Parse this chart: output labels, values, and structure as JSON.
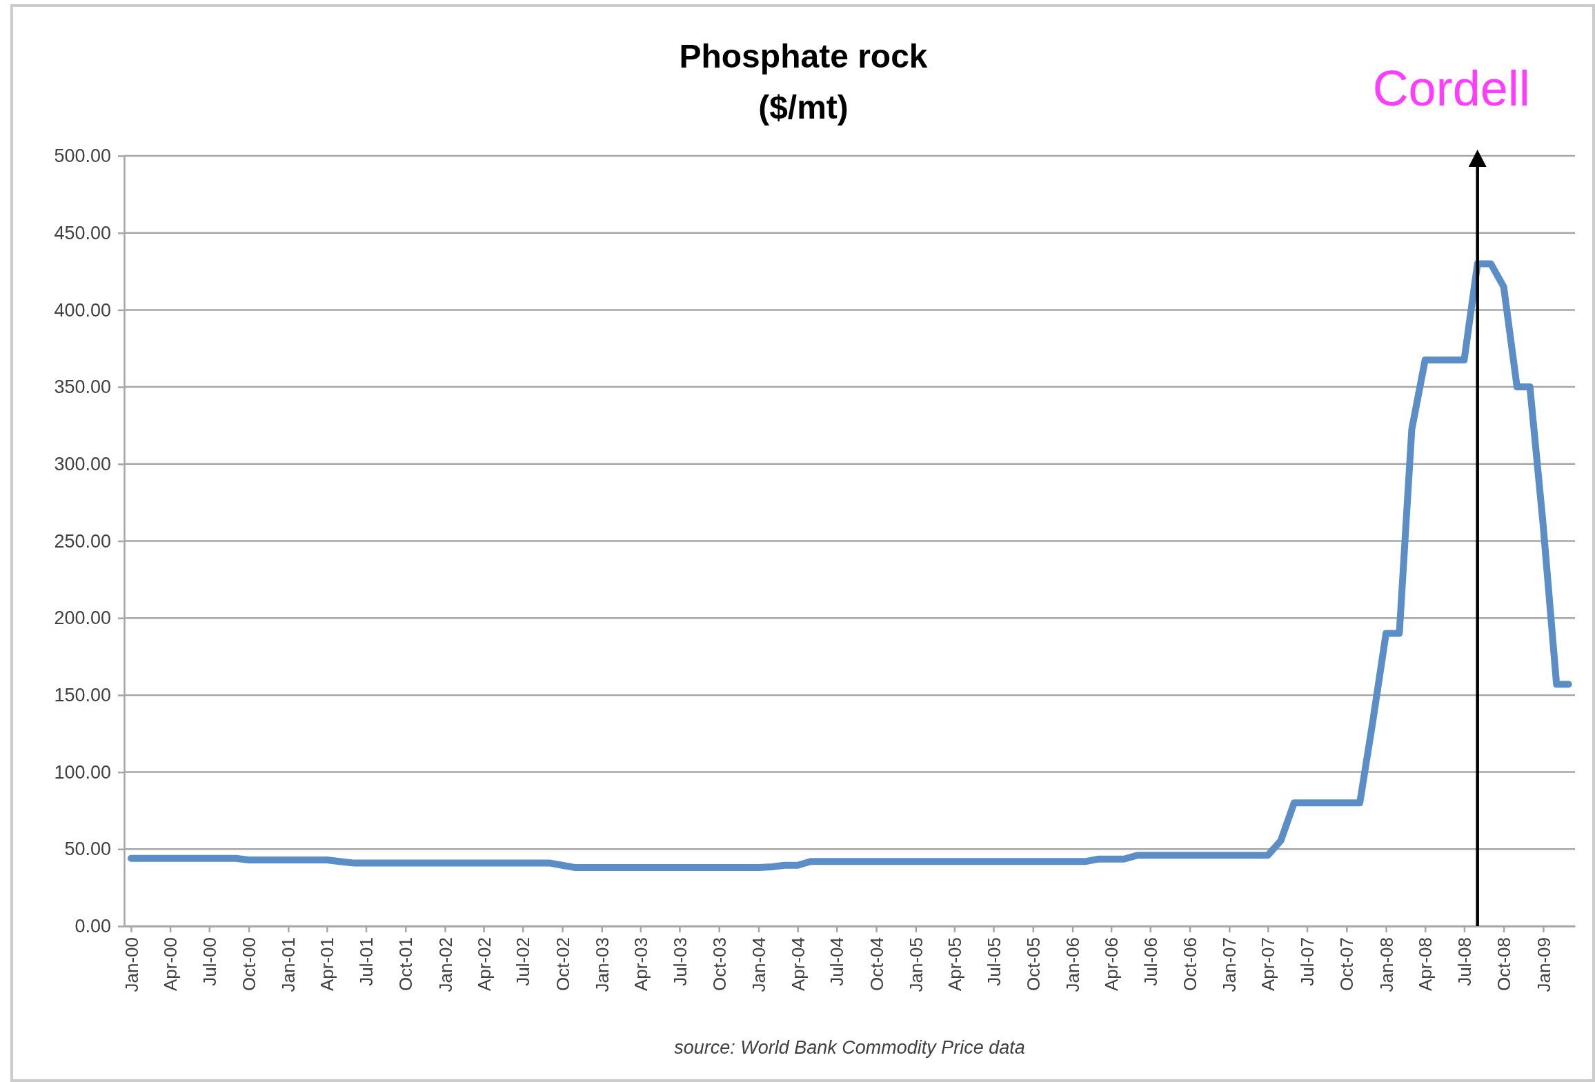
{
  "chart_data": {
    "type": "line",
    "title": "Phosphate rock ($/mt)",
    "x": [
      "2000-01",
      "2000-02",
      "2000-03",
      "2000-04",
      "2000-05",
      "2000-06",
      "2000-07",
      "2000-08",
      "2000-09",
      "2000-10",
      "2000-11",
      "2000-12",
      "2001-01",
      "2001-02",
      "2001-03",
      "2001-04",
      "2001-05",
      "2001-06",
      "2001-07",
      "2001-08",
      "2001-09",
      "2001-10",
      "2001-11",
      "2001-12",
      "2002-01",
      "2002-02",
      "2002-03",
      "2002-04",
      "2002-05",
      "2002-06",
      "2002-07",
      "2002-08",
      "2002-09",
      "2002-10",
      "2002-11",
      "2002-12",
      "2003-01",
      "2003-02",
      "2003-03",
      "2003-04",
      "2003-05",
      "2003-06",
      "2003-07",
      "2003-08",
      "2003-09",
      "2003-10",
      "2003-11",
      "2003-12",
      "2004-01",
      "2004-02",
      "2004-03",
      "2004-04",
      "2004-05",
      "2004-06",
      "2004-07",
      "2004-08",
      "2004-09",
      "2004-10",
      "2004-11",
      "2004-12",
      "2005-01",
      "2005-02",
      "2005-03",
      "2005-04",
      "2005-05",
      "2005-06",
      "2005-07",
      "2005-08",
      "2005-09",
      "2005-10",
      "2005-11",
      "2005-12",
      "2006-01",
      "2006-02",
      "2006-03",
      "2006-04",
      "2006-05",
      "2006-06",
      "2006-07",
      "2006-08",
      "2006-09",
      "2006-10",
      "2006-11",
      "2006-12",
      "2007-01",
      "2007-02",
      "2007-03",
      "2007-04",
      "2007-05",
      "2007-06",
      "2007-07",
      "2007-08",
      "2007-09",
      "2007-10",
      "2007-11",
      "2007-12",
      "2008-01",
      "2008-02",
      "2008-03",
      "2008-04",
      "2008-05",
      "2008-06",
      "2008-07",
      "2008-08",
      "2008-09",
      "2008-10",
      "2008-11",
      "2008-12",
      "2009-01",
      "2009-02",
      "2009-03"
    ],
    "values": [
      44,
      44,
      44,
      44,
      44,
      44,
      44,
      44,
      44,
      43,
      43,
      43,
      43,
      43,
      43,
      43,
      42,
      41,
      41,
      41,
      41,
      41,
      41,
      41,
      41,
      41,
      41,
      41,
      41,
      41,
      41,
      41,
      41,
      39.5,
      38,
      38,
      38,
      38,
      38,
      38,
      38,
      38,
      38,
      38,
      38,
      38,
      38,
      38,
      38,
      38.5,
      39.5,
      39.5,
      42,
      42,
      42,
      42,
      42,
      42,
      42,
      42,
      42,
      42,
      42,
      42,
      42,
      42,
      42,
      42,
      42,
      42,
      42,
      42,
      42,
      42,
      43.5,
      43.5,
      43.5,
      46,
      46,
      46,
      46,
      46,
      46,
      46,
      46,
      46,
      46,
      46,
      55.5,
      80,
      80,
      80,
      80,
      80,
      80,
      132.5,
      190,
      190,
      322.5,
      367.5,
      367.5,
      367.5,
      367.5,
      430,
      430,
      415,
      350,
      350,
      260,
      157,
      157
    ],
    "color": "#5b8ec6",
    "xlim": [
      "1999-12-16",
      "2009-03-16"
    ],
    "xticks": [
      {
        "value": "2000-01",
        "label": "Jan-00"
      },
      {
        "value": "2000-04",
        "label": "Apr-00"
      },
      {
        "value": "2000-07",
        "label": "Jul-00"
      },
      {
        "value": "2000-10",
        "label": "Oct-00"
      },
      {
        "value": "2001-01",
        "label": "Jan-01"
      },
      {
        "value": "2001-04",
        "label": "Apr-01"
      },
      {
        "value": "2001-07",
        "label": "Jul-01"
      },
      {
        "value": "2001-10",
        "label": "Oct-01"
      },
      {
        "value": "2002-01",
        "label": "Jan-02"
      },
      {
        "value": "2002-04",
        "label": "Apr-02"
      },
      {
        "value": "2002-07",
        "label": "Jul-02"
      },
      {
        "value": "2002-10",
        "label": "Oct-02"
      },
      {
        "value": "2003-01",
        "label": "Jan-03"
      },
      {
        "value": "2003-04",
        "label": "Apr-03"
      },
      {
        "value": "2003-07",
        "label": "Jul-03"
      },
      {
        "value": "2003-10",
        "label": "Oct-03"
      },
      {
        "value": "2004-01",
        "label": "Jan-04"
      },
      {
        "value": "2004-04",
        "label": "Apr-04"
      },
      {
        "value": "2004-07",
        "label": "Jul-04"
      },
      {
        "value": "2004-10",
        "label": "Oct-04"
      },
      {
        "value": "2005-01",
        "label": "Jan-05"
      },
      {
        "value": "2005-04",
        "label": "Apr-05"
      },
      {
        "value": "2005-07",
        "label": "Jul-05"
      },
      {
        "value": "2005-10",
        "label": "Oct-05"
      },
      {
        "value": "2006-01",
        "label": "Jan-06"
      },
      {
        "value": "2006-04",
        "label": "Apr-06"
      },
      {
        "value": "2006-07",
        "label": "Jul-06"
      },
      {
        "value": "2006-10",
        "label": "Oct-06"
      },
      {
        "value": "2007-01",
        "label": "Jan-07"
      },
      {
        "value": "2007-04",
        "label": "Apr-07"
      },
      {
        "value": "2007-07",
        "label": "Jul-07"
      },
      {
        "value": "2007-10",
        "label": "Oct-07"
      },
      {
        "value": "2008-01",
        "label": "Jan-08"
      },
      {
        "value": "2008-04",
        "label": "Apr-08"
      },
      {
        "value": "2008-07",
        "label": "Jul-08"
      },
      {
        "value": "2008-10",
        "label": "Oct-08"
      },
      {
        "value": "2009-01",
        "label": "Jan-09"
      }
    ],
    "ylim": [
      0,
      500
    ],
    "yticks": [
      {
        "value": 0,
        "label": "0.00"
      },
      {
        "value": 50,
        "label": "50.00"
      },
      {
        "value": 100,
        "label": "100.00"
      },
      {
        "value": 150,
        "label": "150.00"
      },
      {
        "value": 200,
        "label": "200.00"
      },
      {
        "value": 250,
        "label": "250.00"
      },
      {
        "value": 300,
        "label": "300.00"
      },
      {
        "value": 350,
        "label": "350.00"
      },
      {
        "value": 400,
        "label": "400.00"
      },
      {
        "value": 450,
        "label": "450.00"
      },
      {
        "value": 500,
        "label": "500.00"
      }
    ],
    "grid": "y",
    "ref_lines": [
      {
        "axis": "x",
        "value": "2008-08",
        "label": "Cordell",
        "color": "#000000"
      }
    ],
    "annotations": [
      "source: World Bank Commodity Price data"
    ]
  }
}
